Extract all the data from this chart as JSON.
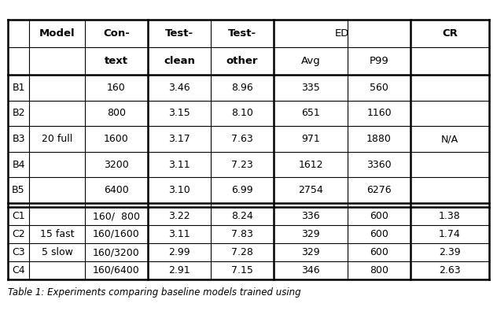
{
  "caption": "Table 1: Experiments comparing baseline models trained using",
  "rows_b": [
    [
      "B1",
      "",
      "160",
      "3.46",
      "8.96",
      "335",
      "560",
      ""
    ],
    [
      "B2",
      "20 full",
      "800",
      "3.15",
      "8.10",
      "651",
      "1160",
      ""
    ],
    [
      "B3",
      "",
      "1600",
      "3.17",
      "7.63",
      "971",
      "1880",
      "N/A"
    ],
    [
      "B4",
      "",
      "3200",
      "3.11",
      "7.23",
      "1612",
      "3360",
      ""
    ],
    [
      "B5",
      "",
      "6400",
      "3.10",
      "6.99",
      "2754",
      "6276",
      ""
    ]
  ],
  "rows_c": [
    [
      "C1",
      "",
      "160/  800",
      "3.22",
      "8.24",
      "336",
      "600",
      "1.38"
    ],
    [
      "C2",
      "15 fast",
      "160/1600",
      "3.11",
      "7.83",
      "329",
      "600",
      "1.74"
    ],
    [
      "C3",
      "5 slow",
      "160/3200",
      "2.99",
      "7.28",
      "329",
      "600",
      "2.39"
    ],
    [
      "C4",
      "",
      "160/6400",
      "2.91",
      "7.15",
      "346",
      "800",
      "2.63"
    ]
  ],
  "fig_width": 6.32,
  "fig_height": 4.04,
  "background_color": "#ffffff",
  "font_size": 9.0,
  "header_font_size": 9.5
}
